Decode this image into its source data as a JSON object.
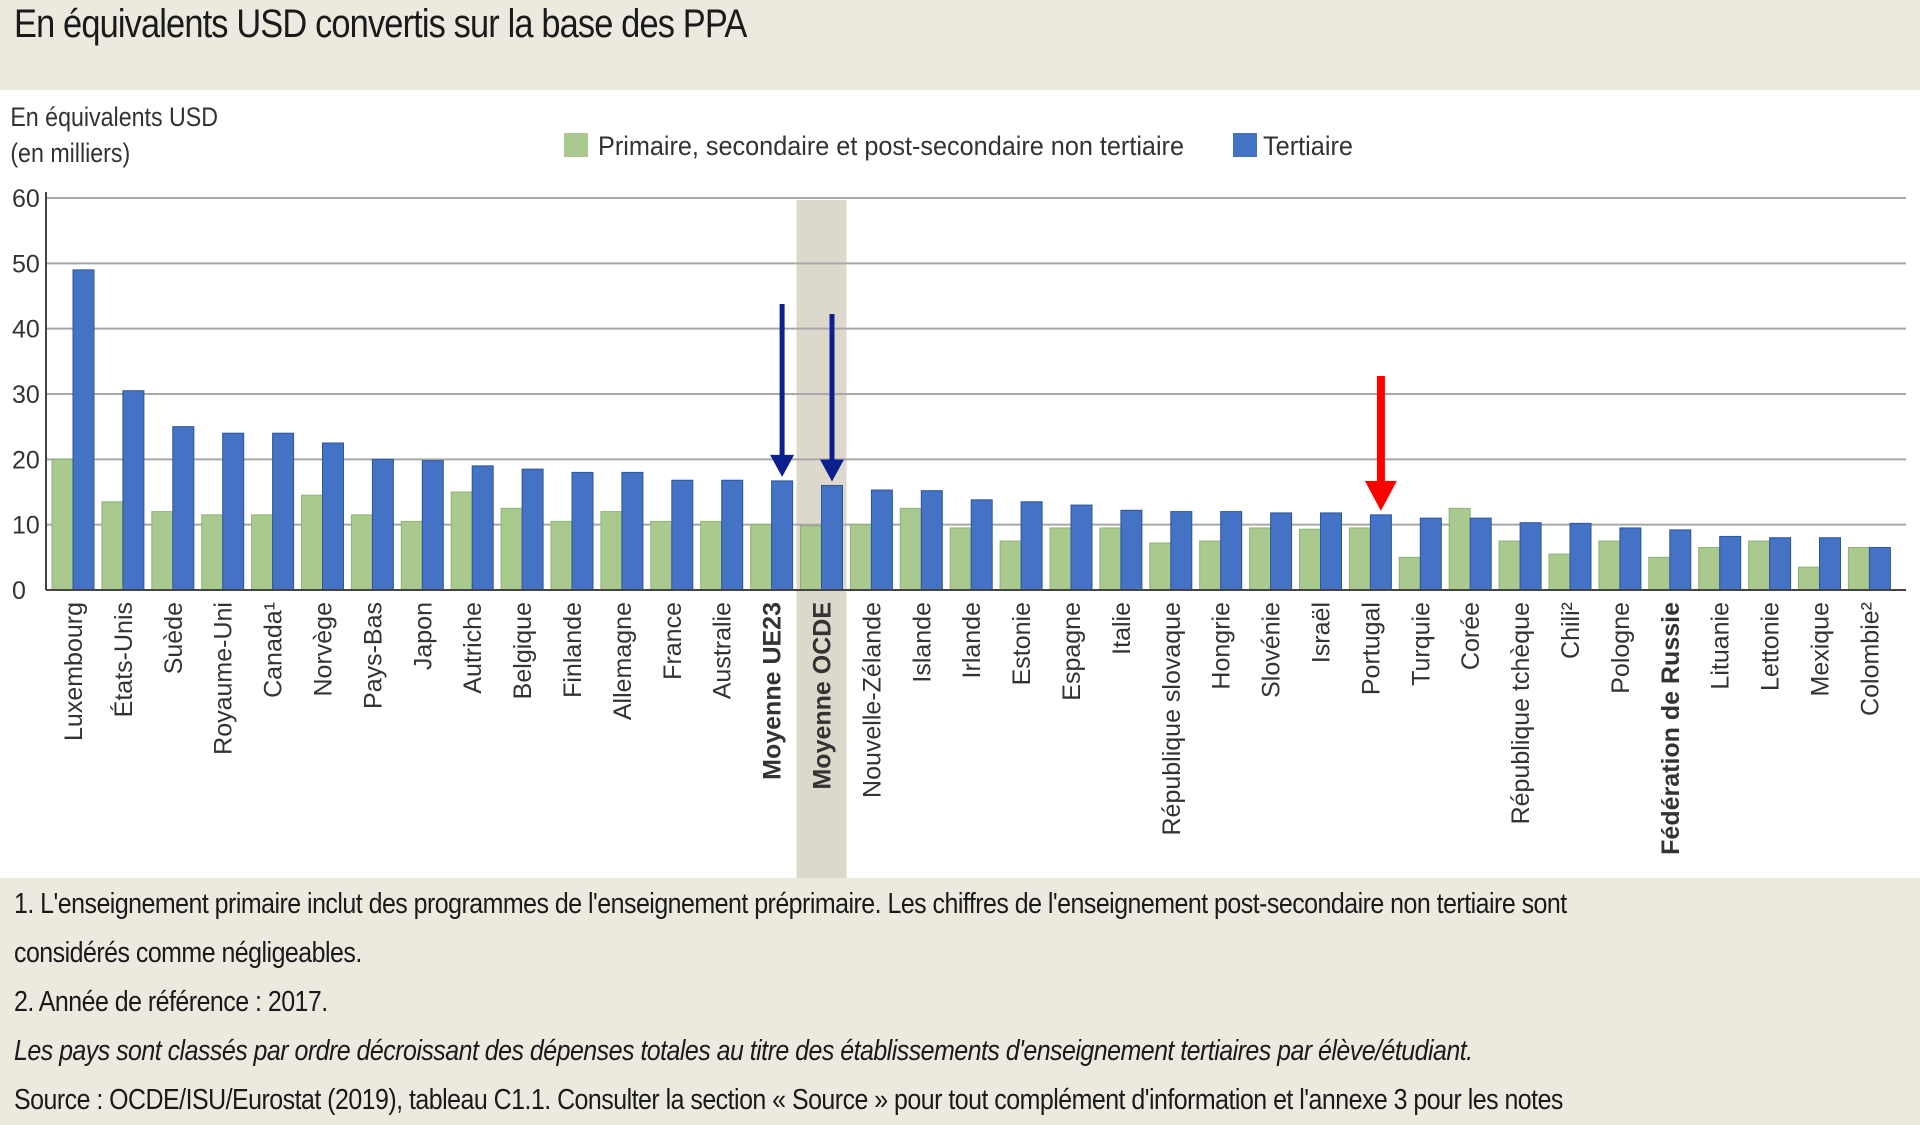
{
  "title": "En équivalents USD convertis sur la base des PPA",
  "chart_data": {
    "type": "bar",
    "ylabel_line1": "En équivalents USD",
    "ylabel_line2": "(en milliers)",
    "ylim": [
      0,
      60
    ],
    "yticks": [
      "0",
      "10",
      "20",
      "30",
      "40",
      "50",
      "60"
    ],
    "grid": true,
    "legend_position": "top-center",
    "colors": {
      "primary": "#a9c98f",
      "tertiary": "#4472c4",
      "arrow_blue": "#0d1f8c",
      "arrow_red": "#ff0000",
      "highlight": "#dcd8cc"
    },
    "categories": [
      "Luxembourg",
      "États-Unis",
      "Suède",
      "Royaume-Uni",
      "Canada¹",
      "Norvège",
      "Pays-Bas",
      "Japon",
      "Autriche",
      "Belgique",
      "Finlande",
      "Allemagne",
      "France",
      "Australie",
      "Moyenne UE23",
      "Moyenne OCDE",
      "Nouvelle-Zélande",
      "Islande",
      "Irlande",
      "Estonie",
      "Espagne",
      "Italie",
      "République slovaque",
      "Hongrie",
      "Slovénie",
      "Israël",
      "Portugal",
      "Turquie",
      "Corée",
      "République tchèque",
      "Chili²",
      "Pologne",
      "Fédération de Russie",
      "Lituanie",
      "Lettonie",
      "Mexique",
      "Colombie²"
    ],
    "bold_categories": [
      "Moyenne UE23",
      "Moyenne OCDE",
      "Fédération de Russie"
    ],
    "highlighted_category": "Moyenne OCDE",
    "arrows": [
      {
        "category": "Moyenne UE23",
        "color": "blue"
      },
      {
        "category": "Moyenne OCDE",
        "color": "blue"
      },
      {
        "category": "Portugal",
        "color": "red"
      }
    ],
    "series": [
      {
        "name": "Primaire, secondaire et post-secondaire non tertiaire",
        "values": [
          20,
          13.5,
          12,
          11.5,
          11.5,
          14.5,
          11.5,
          10.5,
          15,
          12.5,
          10.5,
          12,
          10.5,
          10.5,
          10,
          9.8,
          10,
          12.5,
          9.5,
          7.5,
          9.5,
          9.5,
          7.2,
          7.5,
          9.5,
          9.3,
          9.5,
          5,
          12.5,
          7.5,
          5.5,
          7.5,
          5,
          6.5,
          7.5,
          3.5,
          6.5
        ]
      },
      {
        "name": "Tertiaire",
        "values": [
          49,
          30.5,
          25,
          24,
          24,
          22.5,
          20,
          19.8,
          19,
          18.5,
          18,
          18,
          16.8,
          16.8,
          16.7,
          16,
          15.3,
          15.2,
          13.8,
          13.5,
          13,
          12.2,
          12,
          12,
          11.8,
          11.8,
          11.5,
          11,
          11,
          10.3,
          10.2,
          9.5,
          9.2,
          8.2,
          8,
          8,
          6.5
        ]
      }
    ]
  },
  "notes": {
    "line1": "1. L'enseignement primaire inclut des programmes de l'enseignement préprimaire. Les chiffres de l'enseignement post-secondaire non tertiaire sont",
    "line2": "considérés comme négligeables.",
    "line3": "2. Année de référence : 2017.",
    "line4": "Les pays sont classés par ordre décroissant des dépenses totales au titre des établissements d'enseignement tertiaires par élève/étudiant.",
    "line5": "Source : OCDE/ISU/Eurostat (2019), tableau C1.1. Consulter la section « Source » pour tout complément d'information et l'annexe 3 pour les notes"
  }
}
